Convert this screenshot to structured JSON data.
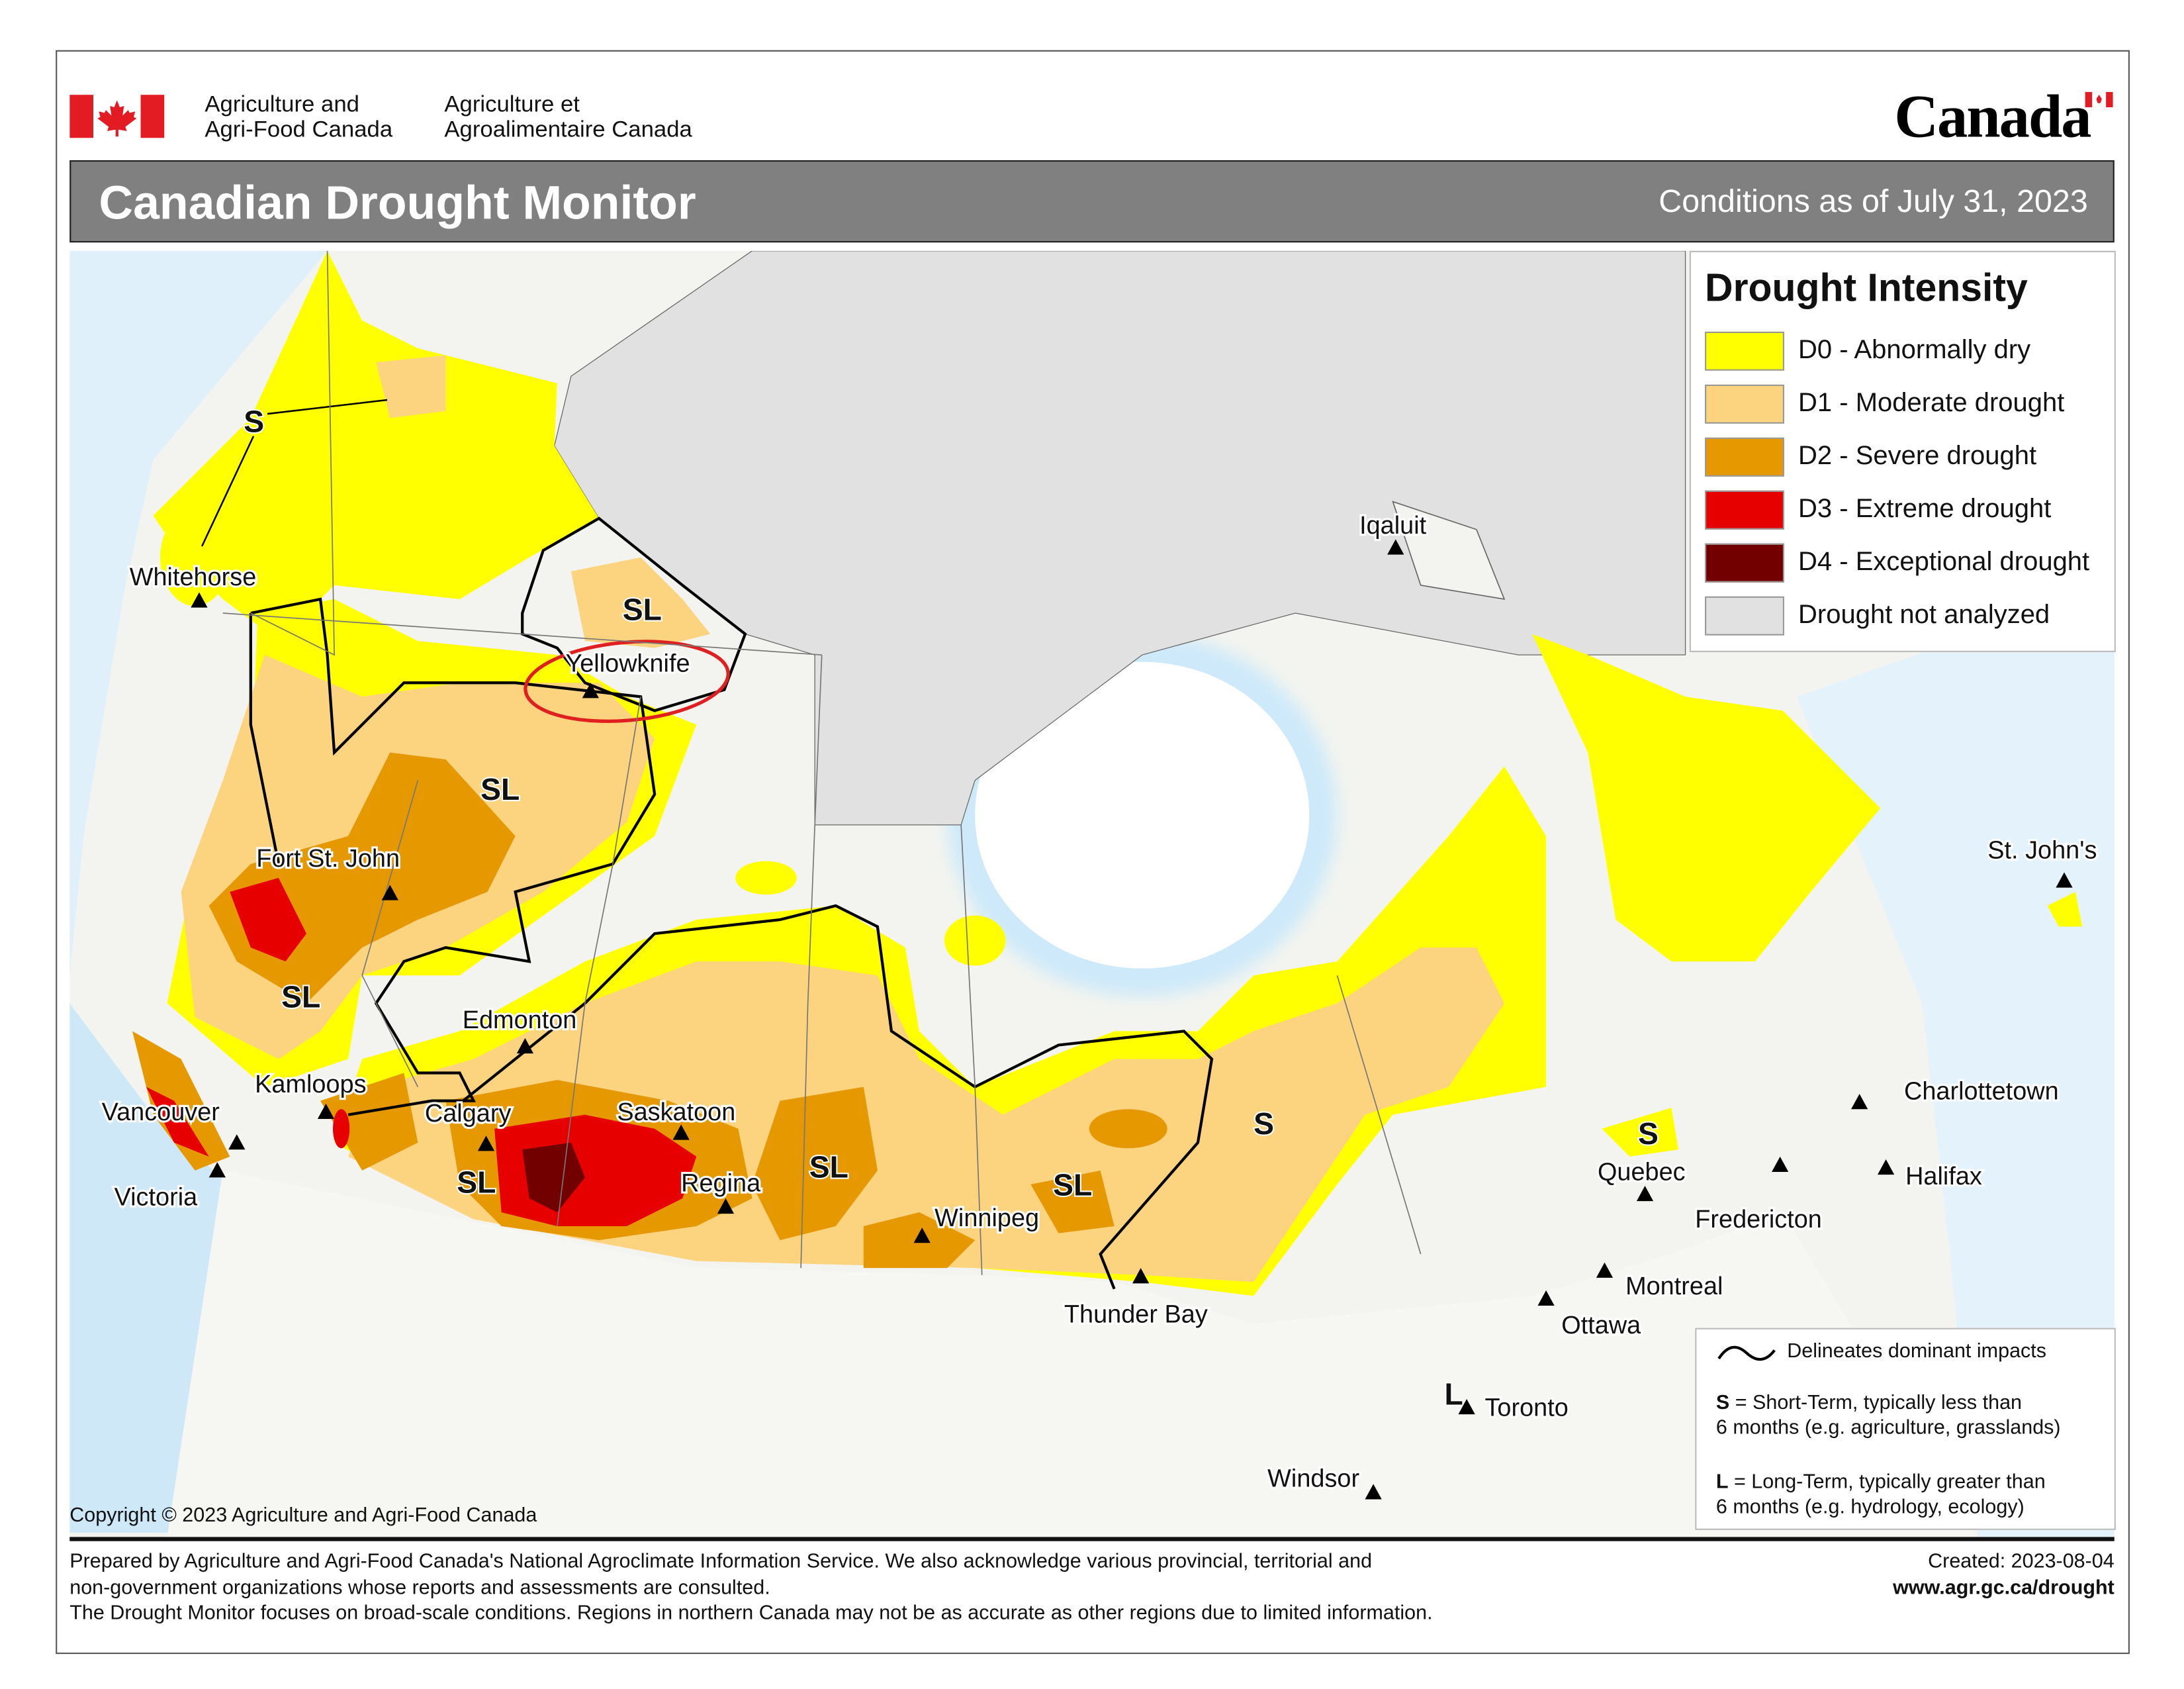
{
  "header": {
    "dept_en_line1": "Agriculture and",
    "dept_en_line2": "Agri-Food Canada",
    "dept_fr_line1": "Agriculture et",
    "dept_fr_line2": "Agroalimentaire Canada",
    "wordmark": "Canada",
    "title": "Canadian Drought Monitor",
    "conditions": "Conditions as of July 31, 2023"
  },
  "legend": {
    "title": "Drought Intensity",
    "items": [
      {
        "label": "D0 - Abnormally dry",
        "color": "#ffff00"
      },
      {
        "label": "D1 - Moderate drought",
        "color": "#fcd37f"
      },
      {
        "label": "D2 - Severe drought",
        "color": "#e69800"
      },
      {
        "label": "D3 - Extreme drought",
        "color": "#e60000"
      },
      {
        "label": "D4 - Exceptional drought",
        "color": "#730000"
      },
      {
        "label": "Drought not analyzed",
        "color": "#e1e1e1"
      }
    ]
  },
  "impact_legend": {
    "line_label": "Delineates dominant impacts",
    "s_key": "S",
    "s_text_1": " = Short-Term, typically less than",
    "s_text_2": "6 months (e.g. agriculture, grasslands)",
    "l_key": "L",
    "l_text_1": " = Long-Term, typically greater  than",
    "l_text_2": "6 months (e.g. hydrology, ecology)"
  },
  "cities": [
    "Whitehorse",
    "Yellowknife",
    "Iqaluit",
    "Fort St. John",
    "Edmonton",
    "Kamloops",
    "Calgary",
    "Saskatoon",
    "Vancouver",
    "Victoria",
    "Regina",
    "Winnipeg",
    "Thunder Bay",
    "Ottawa",
    "Montreal",
    "Toronto",
    "Windsor",
    "Quebec",
    "Fredericton",
    "Charlottetown",
    "Halifax",
    "St. John's"
  ],
  "impact_labels": [
    "S",
    "SL",
    "SL",
    "SL",
    "SL",
    "SL",
    "SL",
    "S",
    "S",
    "L"
  ],
  "copyright": "Copyright © 2023 Agriculture and Agri-Food Canada",
  "footer": {
    "line1": "Prepared by Agriculture and Agri-Food Canada's National Agroclimate Information Service.  We also acknowledge various provincial, territorial and",
    "line2": "non-government organizations whose reports and assessments are consulted.",
    "line3": "The Drought Monitor focuses on broad-scale conditions.  Regions in northern Canada may not be as accurate as other regions due to limited information.",
    "created": "Created: 2023-08-04",
    "url": "www.agr.gc.ca/drought"
  }
}
